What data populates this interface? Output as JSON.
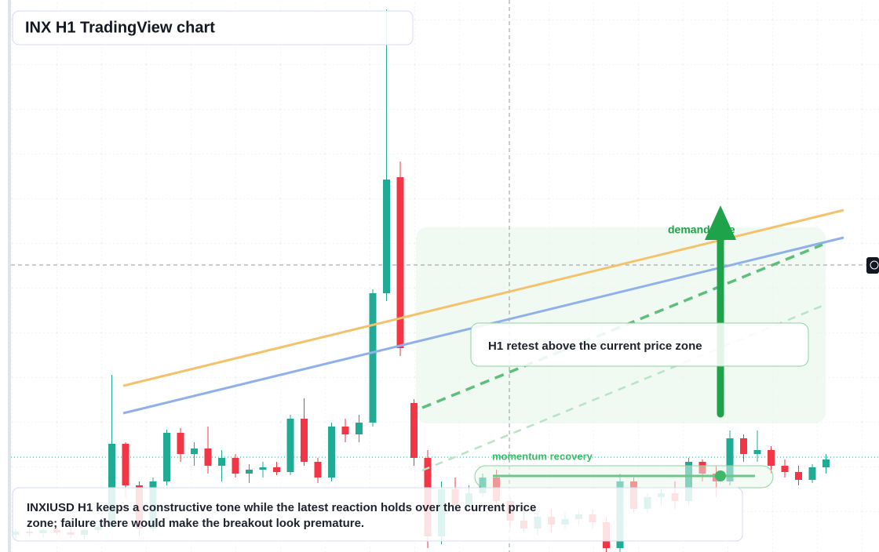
{
  "chart_data": {
    "type": "candlestick",
    "title": "INX H1 TradingView chart",
    "ylim": [
      0,
      704
    ],
    "candles": [
      [
        22,
        30,
        15,
        26
      ],
      [
        26,
        32,
        20,
        24
      ],
      [
        24,
        30,
        18,
        28
      ],
      [
        28,
        34,
        22,
        25
      ],
      [
        25,
        31,
        18,
        22
      ],
      [
        22,
        30,
        16,
        28
      ],
      [
        28,
        36,
        24,
        32
      ],
      [
        32,
        226,
        30,
        138
      ],
      [
        138,
        140,
        70,
        85
      ],
      [
        85,
        90,
        20,
        30
      ],
      [
        30,
        95,
        25,
        90
      ],
      [
        90,
        156,
        85,
        152
      ],
      [
        152,
        158,
        115,
        125
      ],
      [
        125,
        140,
        110,
        132
      ],
      [
        132,
        160,
        100,
        110
      ],
      [
        110,
        130,
        90,
        120
      ],
      [
        120,
        125,
        95,
        100
      ],
      [
        100,
        112,
        88,
        105
      ],
      [
        105,
        115,
        95,
        108
      ],
      [
        108,
        115,
        98,
        102
      ],
      [
        102,
        175,
        98,
        170
      ],
      [
        170,
        196,
        110,
        115
      ],
      [
        115,
        120,
        88,
        95
      ],
      [
        95,
        165,
        90,
        160
      ],
      [
        160,
        170,
        140,
        150
      ],
      [
        150,
        175,
        140,
        165
      ],
      [
        165,
        335,
        160,
        330
      ],
      [
        330,
        692,
        320,
        475
      ],
      [
        478,
        498,
        250,
        260
      ],
      [
        190,
        195,
        110,
        120
      ],
      [
        120,
        130,
        5,
        20
      ],
      [
        20,
        90,
        10,
        80
      ],
      [
        80,
        95,
        55,
        60
      ],
      [
        60,
        85,
        50,
        75
      ],
      [
        75,
        100,
        70,
        95
      ],
      [
        95,
        105,
        60,
        65
      ],
      [
        65,
        70,
        30,
        40
      ],
      [
        40,
        55,
        25,
        30
      ],
      [
        30,
        50,
        22,
        45
      ],
      [
        45,
        55,
        25,
        35
      ],
      [
        35,
        50,
        30,
        42
      ],
      [
        42,
        52,
        35,
        48
      ],
      [
        48,
        55,
        30,
        38
      ],
      [
        38,
        45,
        0,
        5
      ],
      [
        5,
        100,
        0,
        90
      ],
      [
        90,
        95,
        50,
        55
      ],
      [
        55,
        75,
        50,
        70
      ],
      [
        70,
        80,
        60,
        75
      ],
      [
        75,
        90,
        55,
        65
      ],
      [
        65,
        120,
        60,
        115
      ],
      [
        115,
        118,
        90,
        100
      ],
      [
        100,
        110,
        70,
        90
      ],
      [
        90,
        155,
        85,
        145
      ],
      [
        145,
        150,
        115,
        125
      ],
      [
        125,
        155,
        115,
        130
      ],
      [
        130,
        135,
        100,
        110
      ],
      [
        110,
        118,
        95,
        102
      ],
      [
        102,
        110,
        85,
        92
      ],
      [
        92,
        112,
        88,
        108
      ],
      [
        108,
        125,
        100,
        118
      ]
    ],
    "annotations": {
      "zone_label": "demand side",
      "retest": "H1 retest above the current price zone",
      "momentum": "momentum recovery",
      "summary_line1": "INXIUSD H1 keeps a constructive tone while the latest reaction holds over the current price",
      "summary_line2": "zone; failure there would make the breakout look premature."
    }
  }
}
